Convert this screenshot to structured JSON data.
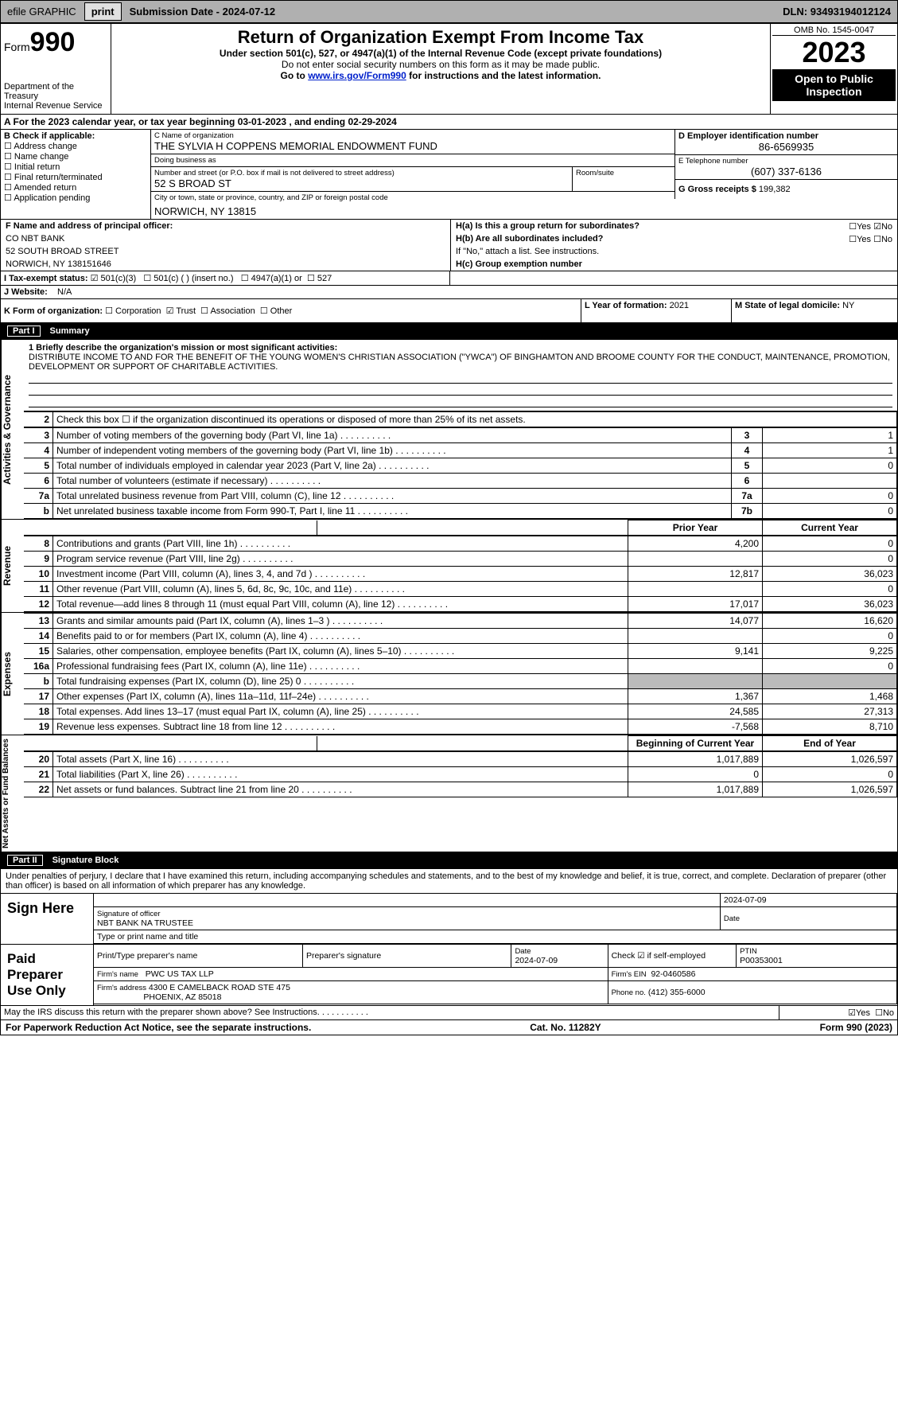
{
  "topbar": {
    "efile": "efile GRAPHIC",
    "print": "print",
    "subdate_label": "Submission Date",
    "subdate": "2024-07-12",
    "dln_label": "DLN:",
    "dln": "93493194012124"
  },
  "header": {
    "form_word": "Form",
    "form_no": "990",
    "title": "Return of Organization Exempt From Income Tax",
    "sub1": "Under section 501(c), 527, or 4947(a)(1) of the Internal Revenue Code (except private foundations)",
    "sub2": "Do not enter social security numbers on this form as it may be made public.",
    "sub3": "Go to www.irs.gov/Form990 for instructions and the latest information.",
    "dept": "Department of the Treasury",
    "irs": "Internal Revenue Service",
    "omb": "OMB No. 1545-0047",
    "year": "2023",
    "open": "Open to Public Inspection"
  },
  "period": {
    "label": "A For the 2023 calendar year, or tax year beginning",
    "begin": "03-01-2023",
    "mid": ", and ending",
    "end": "02-29-2024"
  },
  "B": {
    "hdr": "B Check if applicable:",
    "items": [
      "Address change",
      "Name change",
      "Initial return",
      "Final return/terminated",
      "Amended return",
      "Application pending"
    ]
  },
  "C": {
    "name_lbl": "C Name of organization",
    "name": "THE SYLVIA H COPPENS MEMORIAL ENDOWMENT FUND",
    "dba_lbl": "Doing business as",
    "dba": "",
    "street_lbl": "Number and street (or P.O. box if mail is not delivered to street address)",
    "street": "52 S BROAD ST",
    "room_lbl": "Room/suite",
    "room": "",
    "city_lbl": "City or town, state or province, country, and ZIP or foreign postal code",
    "city": "NORWICH, NY  13815"
  },
  "D": {
    "ein_lbl": "D Employer identification number",
    "ein": "86-6569935",
    "tel_lbl": "E Telephone number",
    "tel": "(607) 337-6136",
    "gross_lbl": "G Gross receipts $",
    "gross": "199,382"
  },
  "F": {
    "lbl": "F  Name and address of principal officer:",
    "name": "CO NBT BANK",
    "addr1": "52 SOUTH BROAD STREET",
    "addr2": "NORWICH, NY  138151646"
  },
  "H": {
    "a": "H(a)  Is this a group return for subordinates?",
    "a_yes": "Yes",
    "a_no": "No",
    "b": "H(b)  Are all subordinates included?",
    "b_yes": "Yes",
    "b_no": "No",
    "b_note": "If \"No,\" attach a list. See instructions.",
    "c": "H(c)  Group exemption number"
  },
  "I": {
    "lbl": "I  Tax-exempt status:",
    "c3": "501(c)(3)",
    "c": "501(c) (  ) (insert no.)",
    "a1": "4947(a)(1) or",
    "s527": "527"
  },
  "J": {
    "lbl": "J  Website:",
    "val": "N/A"
  },
  "K": {
    "lbl": "K Form of organization:",
    "corp": "Corporation",
    "trust": "Trust",
    "assoc": "Association",
    "other": "Other"
  },
  "L": {
    "lbl": "L Year of formation:",
    "val": "2021"
  },
  "M": {
    "lbl": "M State of legal domicile:",
    "val": "NY"
  },
  "part1": {
    "tag": "Part I",
    "title": "Summary"
  },
  "summary": {
    "mission_lbl": "1  Briefly describe the organization's mission or most significant activities:",
    "mission": "DISTRIBUTE INCOME TO AND FOR THE BENEFIT OF THE YOUNG WOMEN'S CHRISTIAN ASSOCIATION (\"YWCA\") OF BINGHAMTON AND BROOME COUNTY FOR THE CONDUCT, MAINTENANCE, PROMOTION, DEVELOPMENT OR SUPPORT OF CHARITABLE ACTIVITIES.",
    "l2": "Check this box ☐ if the organization discontinued its operations or disposed of more than 25% of its net assets.",
    "rows_gov": [
      {
        "n": "3",
        "txt": "Number of voting members of the governing body (Part VI, line 1a)",
        "ref": "3",
        "amt": "1"
      },
      {
        "n": "4",
        "txt": "Number of independent voting members of the governing body (Part VI, line 1b)",
        "ref": "4",
        "amt": "1"
      },
      {
        "n": "5",
        "txt": "Total number of individuals employed in calendar year 2023 (Part V, line 2a)",
        "ref": "5",
        "amt": "0"
      },
      {
        "n": "6",
        "txt": "Total number of volunteers (estimate if necessary)",
        "ref": "6",
        "amt": ""
      },
      {
        "n": "7a",
        "txt": "Total unrelated business revenue from Part VIII, column (C), line 12",
        "ref": "7a",
        "amt": "0"
      },
      {
        "n": "b",
        "txt": "Net unrelated business taxable income from Form 990-T, Part I, line 11",
        "ref": "7b",
        "amt": "0"
      }
    ],
    "col_hdr_prior": "Prior Year",
    "col_hdr_curr": "Current Year",
    "rows_rev": [
      {
        "n": "8",
        "txt": "Contributions and grants (Part VIII, line 1h)",
        "p": "4,200",
        "c": "0"
      },
      {
        "n": "9",
        "txt": "Program service revenue (Part VIII, line 2g)",
        "p": "",
        "c": "0"
      },
      {
        "n": "10",
        "txt": "Investment income (Part VIII, column (A), lines 3, 4, and 7d )",
        "p": "12,817",
        "c": "36,023"
      },
      {
        "n": "11",
        "txt": "Other revenue (Part VIII, column (A), lines 5, 6d, 8c, 9c, 10c, and 11e)",
        "p": "",
        "c": "0"
      },
      {
        "n": "12",
        "txt": "Total revenue—add lines 8 through 11 (must equal Part VIII, column (A), line 12)",
        "p": "17,017",
        "c": "36,023"
      }
    ],
    "rows_exp": [
      {
        "n": "13",
        "txt": "Grants and similar amounts paid (Part IX, column (A), lines 1–3 )",
        "p": "14,077",
        "c": "16,620"
      },
      {
        "n": "14",
        "txt": "Benefits paid to or for members (Part IX, column (A), line 4)",
        "p": "",
        "c": "0"
      },
      {
        "n": "15",
        "txt": "Salaries, other compensation, employee benefits (Part IX, column (A), lines 5–10)",
        "p": "9,141",
        "c": "9,225"
      },
      {
        "n": "16a",
        "txt": "Professional fundraising fees (Part IX, column (A), line 11e)",
        "p": "",
        "c": "0"
      },
      {
        "n": "b",
        "txt": "Total fundraising expenses (Part IX, column (D), line 25) 0",
        "p": "SHADE",
        "c": "SHADE"
      },
      {
        "n": "17",
        "txt": "Other expenses (Part IX, column (A), lines 11a–11d, 11f–24e)",
        "p": "1,367",
        "c": "1,468"
      },
      {
        "n": "18",
        "txt": "Total expenses. Add lines 13–17 (must equal Part IX, column (A), line 25)",
        "p": "24,585",
        "c": "27,313"
      },
      {
        "n": "19",
        "txt": "Revenue less expenses. Subtract line 18 from line 12",
        "p": "-7,568",
        "c": "8,710"
      }
    ],
    "col_hdr_beg": "Beginning of Current Year",
    "col_hdr_end": "End of Year",
    "rows_net": [
      {
        "n": "20",
        "txt": "Total assets (Part X, line 16)",
        "p": "1,017,889",
        "c": "1,026,597"
      },
      {
        "n": "21",
        "txt": "Total liabilities (Part X, line 26)",
        "p": "0",
        "c": "0"
      },
      {
        "n": "22",
        "txt": "Net assets or fund balances. Subtract line 21 from line 20",
        "p": "1,017,889",
        "c": "1,026,597"
      }
    ],
    "side_gov": "Activities & Governance",
    "side_rev": "Revenue",
    "side_exp": "Expenses",
    "side_net": "Net Assets or Fund Balances"
  },
  "part2": {
    "tag": "Part II",
    "title": "Signature Block"
  },
  "sig": {
    "decl": "Under penalties of perjury, I declare that I have examined this return, including accompanying schedules and statements, and to the best of my knowledge and belief, it is true, correct, and complete. Declaration of preparer (other than officer) is based on all information of which preparer has any knowledge.",
    "sign_here": "Sign Here",
    "sig_date": "2024-07-09",
    "sig_lbl": "Signature of officer",
    "date_lbl": "Date",
    "officer": "NBT BANK NA  TRUSTEE",
    "officer_lbl": "Type or print name and title",
    "paid": "Paid Preparer Use Only",
    "prep_name_lbl": "Print/Type preparer's name",
    "prep_sig_lbl": "Preparer's signature",
    "prep_date_lbl": "Date",
    "prep_date": "2024-07-09",
    "self_emp": "Check ☑ if self-employed",
    "ptin_lbl": "PTIN",
    "ptin": "P00353001",
    "firm_lbl": "Firm's name",
    "firm": "PWC US TAX LLP",
    "firm_ein_lbl": "Firm's EIN",
    "firm_ein": "92-0460586",
    "firm_addr_lbl": "Firm's address",
    "firm_addr": "4300 E CAMELBACK ROAD STE 475",
    "firm_addr2": "PHOENIX, AZ  85018",
    "phone_lbl": "Phone no.",
    "phone": "(412) 355-6000",
    "discuss": "May the IRS discuss this return with the preparer shown above? See Instructions.",
    "yes": "Yes",
    "no": "No"
  },
  "foot": {
    "pra": "For Paperwork Reduction Act Notice, see the separate instructions.",
    "cat": "Cat. No. 11282Y",
    "form": "Form 990 (2023)"
  },
  "colors": {
    "topbar_bg": "#b0b0b0",
    "black": "#000000",
    "link": "#0020cc"
  }
}
